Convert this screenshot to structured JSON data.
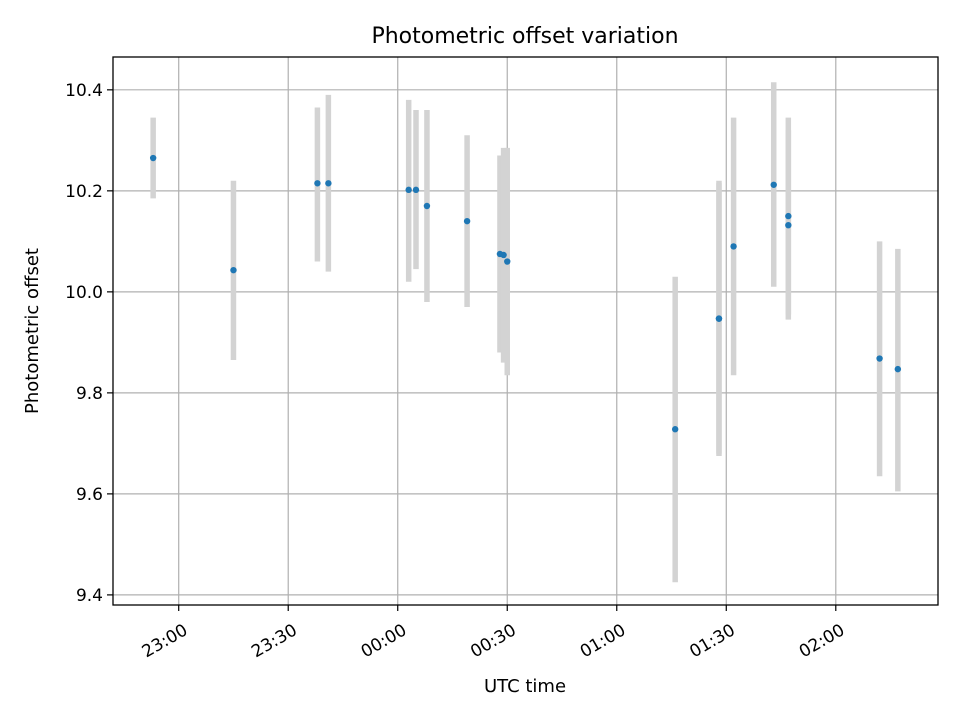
{
  "chart_data": {
    "type": "scatter",
    "title": "Photometric offset variation",
    "xlabel": "UTC time",
    "ylabel": "Photometric offset",
    "xlim": [
      "22:42",
      "02:28"
    ],
    "ylim": [
      9.38,
      10.465
    ],
    "grid": true,
    "x_ticks": [
      "23:00",
      "23:30",
      "00:00",
      "00:30",
      "01:00",
      "01:30",
      "02:00"
    ],
    "y_ticks": [
      "9.4",
      "9.6",
      "9.8",
      "10.0",
      "10.2",
      "10.4"
    ],
    "marker_color": "#1f77b4",
    "errorbar_color": "#d3d3d3",
    "points": [
      {
        "time": "22:53",
        "offset": 10.265,
        "lower": 10.185,
        "upper": 10.345
      },
      {
        "time": "23:15",
        "offset": 10.043,
        "lower": 9.865,
        "upper": 10.22
      },
      {
        "time": "23:38",
        "offset": 10.215,
        "lower": 10.06,
        "upper": 10.365
      },
      {
        "time": "23:41",
        "offset": 10.215,
        "lower": 10.04,
        "upper": 10.39
      },
      {
        "time": "00:03",
        "offset": 10.202,
        "lower": 10.02,
        "upper": 10.38
      },
      {
        "time": "00:05",
        "offset": 10.202,
        "lower": 10.045,
        "upper": 10.36
      },
      {
        "time": "00:08",
        "offset": 10.17,
        "lower": 9.98,
        "upper": 10.36
      },
      {
        "time": "00:19",
        "offset": 10.14,
        "lower": 9.97,
        "upper": 10.31
      },
      {
        "time": "00:28",
        "offset": 10.075,
        "lower": 9.88,
        "upper": 10.27
      },
      {
        "time": "00:29",
        "offset": 10.073,
        "lower": 9.86,
        "upper": 10.285
      },
      {
        "time": "00:30",
        "offset": 10.06,
        "lower": 9.835,
        "upper": 10.285
      },
      {
        "time": "01:16",
        "offset": 9.728,
        "lower": 9.425,
        "upper": 10.03
      },
      {
        "time": "01:28",
        "offset": 9.947,
        "lower": 9.675,
        "upper": 10.22
      },
      {
        "time": "01:28",
        "offset": 9.947,
        "lower": 9.68,
        "upper": 10.215
      },
      {
        "time": "01:32",
        "offset": 10.09,
        "lower": 9.835,
        "upper": 10.345
      },
      {
        "time": "01:43",
        "offset": 10.212,
        "lower": 10.01,
        "upper": 10.415
      },
      {
        "time": "01:47",
        "offset": 10.15,
        "lower": 9.955,
        "upper": 10.345
      },
      {
        "time": "01:47",
        "offset": 10.132,
        "lower": 9.945,
        "upper": 10.32
      },
      {
        "time": "02:12",
        "offset": 9.868,
        "lower": 9.635,
        "upper": 10.1
      },
      {
        "time": "02:17",
        "offset": 9.847,
        "lower": 9.605,
        "upper": 10.085
      }
    ]
  }
}
